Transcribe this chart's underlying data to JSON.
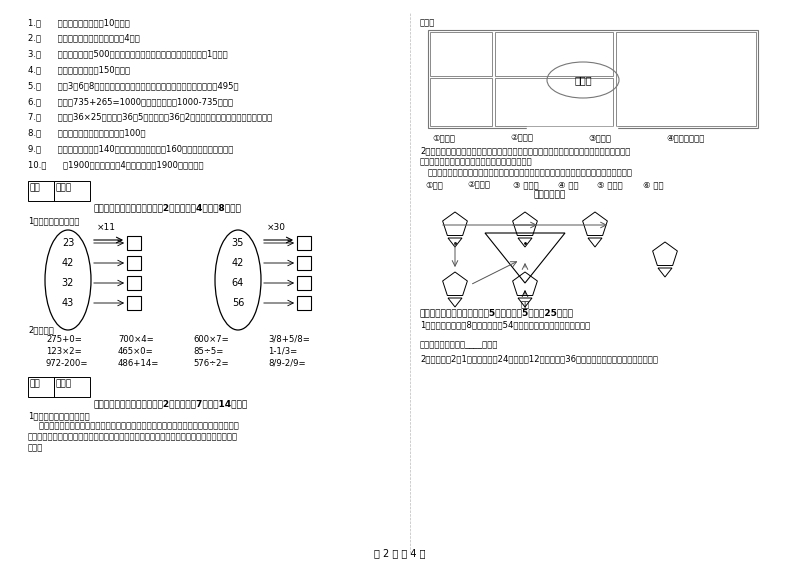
{
  "bg_color": "#ffffff",
  "section3_items": [
    "1.（      ）小明家客厅面积是10公顿。",
    "2.（      ）正方形的周长是它的边长的4倍。",
    "3.（      ）小明家离学校500米，他每天上学、回家，一个来回一共要走1千米。",
    "4.（      ）一本故事书的重150千克。",
    "5.（      ）用3、6、8这三个数字组成的最大三位数与最小三位数，它们相差495。",
    "6.（      ）根据735+265=1000，可以直接写出1000-735的差。",
    "7.（      ）计算36×25时，先抄36和5相乘，再抄36和2相乘，最后把两次乘积的结果相加。",
    "8.（      ）两个面积单位之间的进率是100。",
    "9.（      ）一条河平均水深140厘米，一匹小马身高是160厘米，它肯定能通过。",
    "10.（      ）1900年的年份数是4的倍数，所以1900年是闰年。"
  ],
  "score_label": "得分",
  "reviewer_label": "评卷人",
  "section4_title": "四、看清题目，细心计算（割2小题，每题4分，公8分）。",
  "section4_sub1": "1、算一算，填一填。",
  "oval1_nums": [
    "23",
    "42",
    "32",
    "43"
  ],
  "oval1_op": "×11",
  "oval2_nums": [
    "35",
    "42",
    "64",
    "56"
  ],
  "oval2_op": "×30",
  "section4_sub2": "2、口算：",
  "oral_calc": [
    [
      "275+0=",
      "700×4=",
      "600×7=",
      "3/8+5/8="
    ],
    [
      "123×2=",
      "465×0=",
      "85÷5=",
      "1-1/3="
    ],
    [
      "972-200=",
      "486+14=",
      "576÷2=",
      "8/9-2/9="
    ]
  ],
  "section5_title": "五、认真思考，综合能力（割2小题，每题7分，公14分）。",
  "section5_sub1": "1、仔细观察，认真填空。",
  "section5_text1": "    「走进服装城大门，正北面是假山石和童装区，假山的东面是中老年服装区，假山的西北",
  "section5_text2": "边是男装区，男装区的南边是女装区。」，根据以上的描述请你把服装城的区号标在适当的位",
  "section5_text3": "置上。",
  "right_text1": "置上。",
  "store_labels": [
    "①童装区",
    "②男装区",
    "③女装区",
    "④中老年服装区"
  ],
  "section6_title": "六、活用知识，解决问题（割5小题，每题5分，公25分）。",
  "section6_sub1": "1、学校食堂买大籸8袋，每袋大籸54千克，学校食堂买大籸多少千克？",
  "section6_ans1": "答：学校食堂买大籸____千克。",
  "section6_sub2": "2、学校要买2符1乒乓球，每符24盒，每盒12个，每盒卧36元，学校买乒乓球一共花了多少錢？",
  "zoo_labels": [
    "①狮山",
    "②猡猡馆",
    "③ 飞禽馆",
    "④ 猴园",
    "⑤ 大象馆",
    "⑥ 鱼馆"
  ],
  "zoo_title": "动物园导游图",
  "page_num": "第 2 页 公 4 页"
}
